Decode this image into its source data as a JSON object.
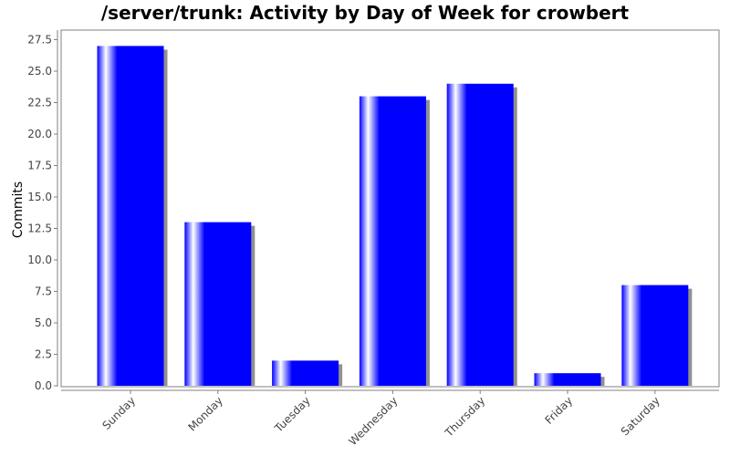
{
  "colors": {
    "bar": "#0000ff",
    "bar_highlight": "#ffffff",
    "shadow": "#909090",
    "plot_border": "#808080",
    "axis": "#808080",
    "tick_text": "#444444",
    "background": "#ffffff"
  },
  "chart_data": {
    "type": "bar",
    "title": "/server/trunk: Activity by Day of Week for crowbert",
    "xlabel": "",
    "ylabel": "Commits",
    "categories": [
      "Sunday",
      "Monday",
      "Tuesday",
      "Wednesday",
      "Thursday",
      "Friday",
      "Saturday"
    ],
    "values": [
      27,
      13,
      2,
      23,
      24,
      1,
      8
    ],
    "ylim": [
      0,
      28.3
    ],
    "yticks": [
      "0.0",
      "2.5",
      "5.0",
      "7.5",
      "10.0",
      "12.5",
      "15.0",
      "17.5",
      "20.0",
      "22.5",
      "25.0",
      "27.5"
    ],
    "grid": false,
    "legend": "none"
  }
}
